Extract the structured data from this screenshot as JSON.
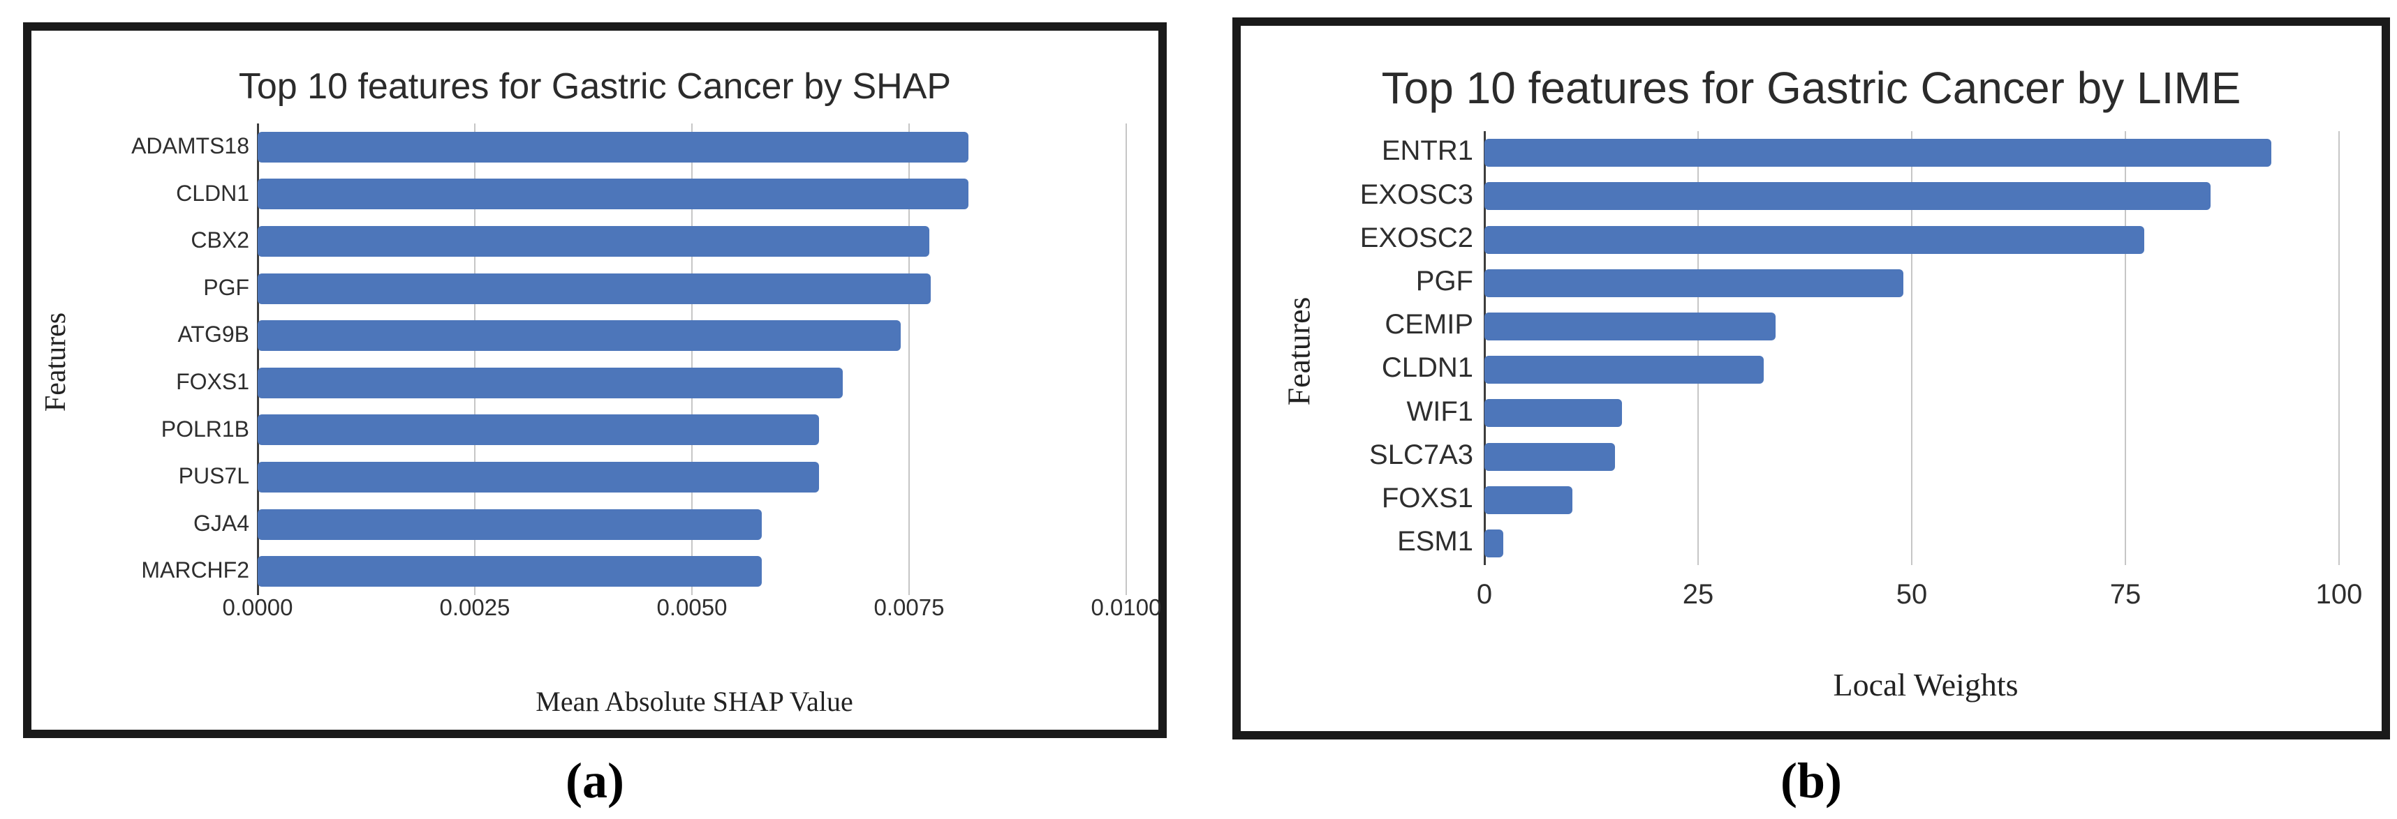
{
  "colors": {
    "bar": "#4d76ba",
    "gridline": "#c6c6c6",
    "spine": "#3c3c3c",
    "panel_border": "#1a1a1a",
    "text": "#2e2e2e"
  },
  "chart_data": [
    {
      "type": "bar",
      "orientation": "horizontal",
      "title": "Top 10 features for Gastric Cancer by SHAP",
      "xlabel": "Mean Absolute SHAP Value",
      "ylabel": "Features",
      "caption": "(a)",
      "xlim": [
        0,
        0.01
      ],
      "grid": true,
      "legend": false,
      "xtick_values": [
        0,
        0.0025,
        0.005,
        0.0075,
        0.01
      ],
      "xtick_labels": [
        "0.0000",
        "0.0025",
        "0.0050",
        "0.0075",
        "0.0100"
      ],
      "categories": [
        "ADAMTS18",
        "CLDN1",
        "CBX2",
        "PGF",
        "ATG9B",
        "FOXS1",
        "POLR1B",
        "PUS7L",
        "GJA4",
        "MARCHF2"
      ],
      "values": [
        0.00818,
        0.00818,
        0.00773,
        0.00775,
        0.0074,
        0.00674,
        0.00646,
        0.00646,
        0.0058,
        0.0058
      ]
    },
    {
      "type": "bar",
      "orientation": "horizontal",
      "title": "Top 10 features for Gastric Cancer by LIME",
      "xlabel": "Local Weights",
      "ylabel": "Features",
      "caption": "(b)",
      "xlim": [
        0,
        100
      ],
      "grid": true,
      "legend": false,
      "xtick_values": [
        0,
        25,
        50,
        75,
        100
      ],
      "xtick_labels": [
        "0",
        "25",
        "50",
        "75",
        "100"
      ],
      "categories": [
        "ENTR1",
        "EXOSC3",
        "EXOSC2",
        "PGF",
        "CEMIP",
        "CLDN1",
        "WIF1",
        "SLC7A3",
        "FOXS1",
        "ESM1"
      ],
      "values": [
        92.1,
        85.0,
        77.2,
        49.0,
        34.1,
        32.7,
        16.1,
        15.3,
        10.3,
        2.2
      ]
    }
  ]
}
